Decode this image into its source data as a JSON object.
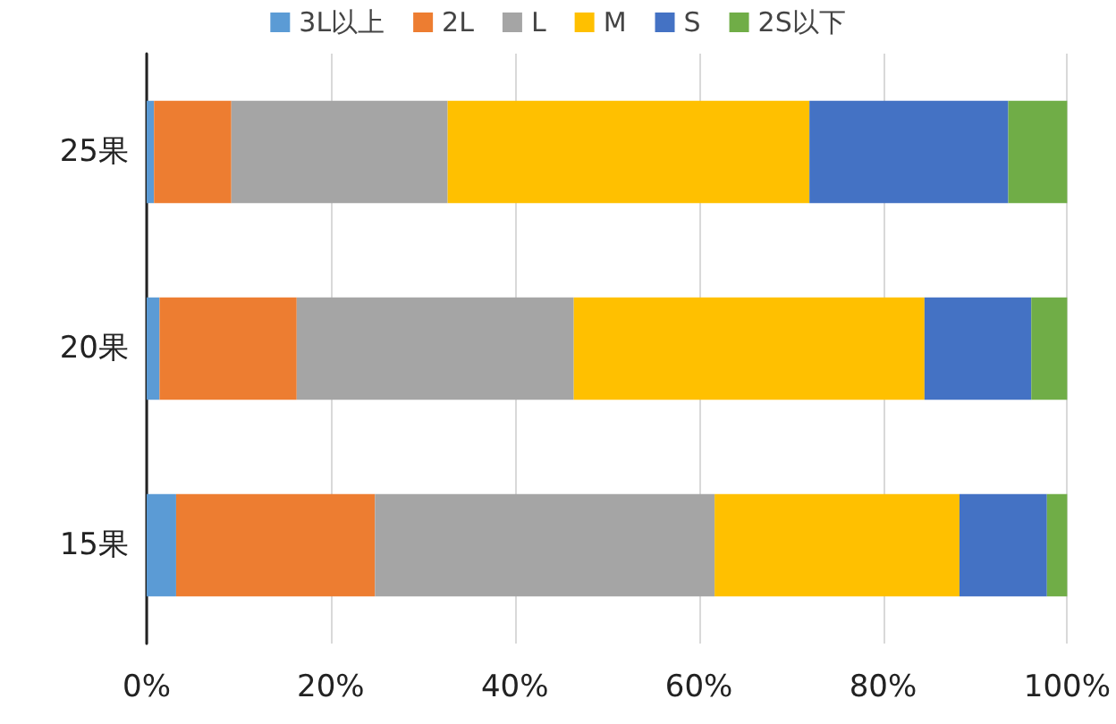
{
  "chart_data": {
    "type": "bar",
    "orientation": "horizontal",
    "stacked": true,
    "categories": [
      "25果",
      "20果",
      "15果"
    ],
    "series": [
      {
        "name": "3L以上",
        "color": "#5b9bd5",
        "values": [
          0.8,
          1.4,
          3.2
        ]
      },
      {
        "name": "2L",
        "color": "#ed7d31",
        "values": [
          8.4,
          14.9,
          21.6
        ]
      },
      {
        "name": "L",
        "color": "#a5a5a5",
        "values": [
          23.5,
          30.1,
          36.9
        ]
      },
      {
        "name": "M",
        "color": "#ffc000",
        "values": [
          39.3,
          38.1,
          26.6
        ]
      },
      {
        "name": "S",
        "color": "#4472c4",
        "values": [
          21.6,
          11.6,
          9.5
        ]
      },
      {
        "name": "2S以下",
        "color": "#70ad47",
        "values": [
          6.4,
          3.9,
          2.2
        ]
      }
    ],
    "xlim": [
      0,
      100
    ],
    "xticks": [
      {
        "value": 0,
        "label": "0%"
      },
      {
        "value": 20,
        "label": "20%"
      },
      {
        "value": 40,
        "label": "40%"
      },
      {
        "value": 60,
        "label": "60%"
      },
      {
        "value": 80,
        "label": "80%"
      },
      {
        "value": 100,
        "label": "100%"
      }
    ],
    "grid": "x",
    "legend": "top"
  }
}
